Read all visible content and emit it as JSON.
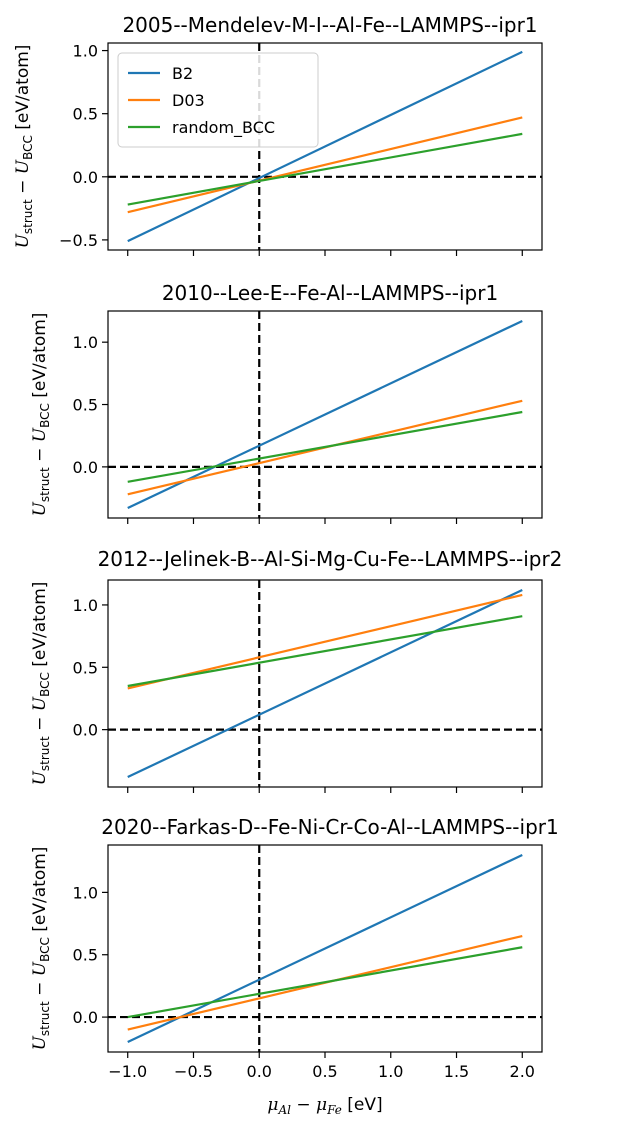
{
  "colors": {
    "B2": "#1f77b4",
    "D03": "#ff7f0e",
    "random_BCC": "#2ca02c"
  },
  "chart_data": [
    {
      "type": "line",
      "title": "2005--Mendelev-M-I--Al-Fe--LAMMPS--ipr1",
      "ylabel": "U_struct − U_BCC [eV/atom]",
      "xlabel": "",
      "xlim": [
        -1.15,
        2.15
      ],
      "ylim": [
        -0.58,
        1.06
      ],
      "yticks": [
        -0.5,
        0.0,
        0.5,
        1.0
      ],
      "ytick_labels": [
        "−0.5",
        "0.0",
        "0.5",
        "1.0"
      ],
      "x": [
        -1.0,
        2.0
      ],
      "series": [
        {
          "name": "B2",
          "values": [
            -0.51,
            0.99
          ]
        },
        {
          "name": "D03",
          "values": [
            -0.28,
            0.47
          ]
        },
        {
          "name": "random_BCC",
          "values": [
            -0.22,
            0.34
          ]
        }
      ],
      "legend": "upper-left",
      "grid": false
    },
    {
      "type": "line",
      "title": "2010--Lee-E--Fe-Al--LAMMPS--ipr1",
      "ylabel": "U_struct − U_BCC [eV/atom]",
      "xlabel": "",
      "xlim": [
        -1.15,
        2.15
      ],
      "ylim": [
        -0.41,
        1.25
      ],
      "yticks": [
        0.0,
        0.5,
        1.0
      ],
      "ytick_labels": [
        "0.0",
        "0.5",
        "1.0"
      ],
      "x": [
        -1.0,
        2.0
      ],
      "series": [
        {
          "name": "B2",
          "values": [
            -0.33,
            1.17
          ]
        },
        {
          "name": "D03",
          "values": [
            -0.22,
            0.53
          ]
        },
        {
          "name": "random_BCC",
          "values": [
            -0.12,
            0.44
          ]
        }
      ],
      "grid": false
    },
    {
      "type": "line",
      "title": "2012--Jelinek-B--Al-Si-Mg-Cu-Fe--LAMMPS--ipr2",
      "ylabel": "U_struct − U_BCC [eV/atom]",
      "xlabel": "",
      "xlim": [
        -1.15,
        2.15
      ],
      "ylim": [
        -0.46,
        1.2
      ],
      "yticks": [
        0.0,
        0.5,
        1.0
      ],
      "ytick_labels": [
        "0.0",
        "0.5",
        "1.0"
      ],
      "x": [
        -1.0,
        2.0
      ],
      "series": [
        {
          "name": "B2",
          "values": [
            -0.38,
            1.12
          ]
        },
        {
          "name": "D03",
          "values": [
            0.33,
            1.08
          ]
        },
        {
          "name": "random_BCC",
          "values": [
            0.35,
            0.91
          ]
        }
      ],
      "grid": false
    },
    {
      "type": "line",
      "title": "2020--Farkas-D--Fe-Ni-Cr-Co-Al--LAMMPS--ipr1",
      "ylabel": "U_struct − U_BCC [eV/atom]",
      "xlabel": "μ_Al − μ_Fe [eV]",
      "xlim": [
        -1.15,
        2.15
      ],
      "ylim": [
        -0.28,
        1.38
      ],
      "yticks": [
        0.0,
        0.5,
        1.0
      ],
      "ytick_labels": [
        "0.0",
        "0.5",
        "1.0"
      ],
      "xticks": [
        -1.0,
        -0.5,
        0.0,
        0.5,
        1.0,
        1.5,
        2.0
      ],
      "xtick_labels": [
        "−1.0",
        "−0.5",
        "0.0",
        "0.5",
        "1.0",
        "1.5",
        "2.0"
      ],
      "x": [
        -1.0,
        2.0
      ],
      "series": [
        {
          "name": "B2",
          "values": [
            -0.2,
            1.3
          ]
        },
        {
          "name": "D03",
          "values": [
            -0.1,
            0.65
          ]
        },
        {
          "name": "random_BCC",
          "values": [
            0.0,
            0.56
          ]
        }
      ],
      "grid": false
    }
  ]
}
